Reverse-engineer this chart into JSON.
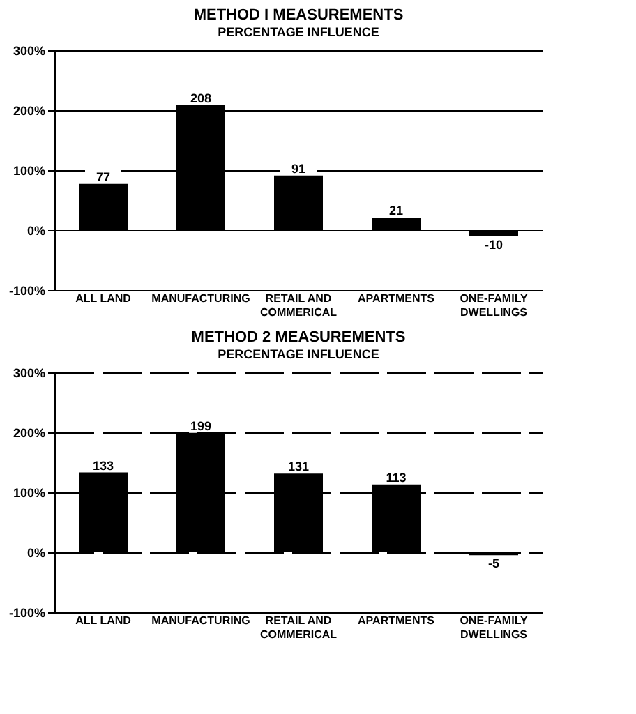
{
  "chart_data": [
    {
      "type": "bar",
      "title": "METHOD I MEASUREMENTS",
      "subtitle": "PERCENTAGE INFLUENCE",
      "categories": [
        "ALL LAND",
        "MANUFACTURING",
        "RETAIL AND\nCOMMERICAL",
        "APARTMENTS",
        "ONE-FAMILY\nDWELLINGS"
      ],
      "values": [
        77,
        208,
        91,
        21,
        -10
      ],
      "color": "#000000",
      "data_labels": true,
      "ylim": [
        -100,
        300
      ],
      "yticks": [
        {
          "value": -100,
          "label": "-100%"
        },
        {
          "value": 0,
          "label": "0%"
        },
        {
          "value": 100,
          "label": "100%"
        },
        {
          "value": 200,
          "label": "200%"
        },
        {
          "value": 300,
          "label": "300%"
        }
      ],
      "grid": "y"
    },
    {
      "type": "bar",
      "title": "METHOD 2 MEASUREMENTS",
      "subtitle": "PERCENTAGE INFLUENCE",
      "categories": [
        "ALL LAND",
        "MANUFACTURING",
        "RETAIL AND\nCOMMERICAL",
        "APARTMENTS",
        "ONE-FAMILY\nDWELLINGS"
      ],
      "values": [
        133,
        199,
        131,
        113,
        -5
      ],
      "color": "#000000",
      "data_labels": true,
      "ylim": [
        -100,
        300
      ],
      "yticks": [
        {
          "value": -100,
          "label": "-100%"
        },
        {
          "value": 0,
          "label": "0%"
        },
        {
          "value": 100,
          "label": "100%"
        },
        {
          "value": 200,
          "label": "200%"
        },
        {
          "value": 300,
          "label": "300%"
        }
      ],
      "grid": "y"
    }
  ]
}
